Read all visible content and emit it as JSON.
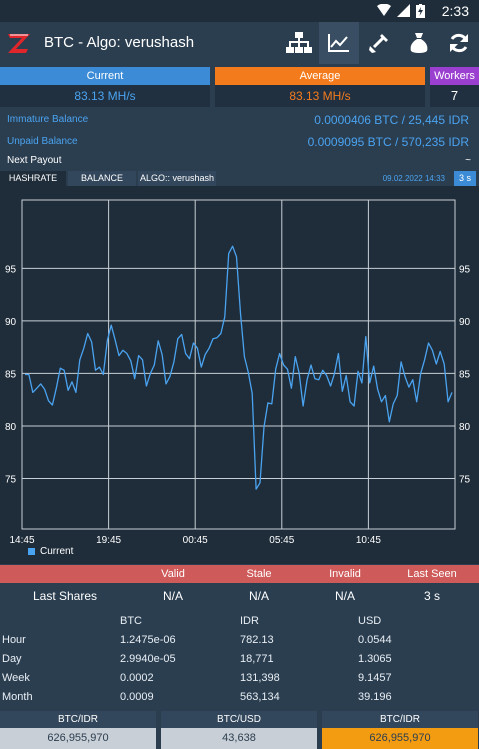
{
  "statusbar": {
    "time": "2:33"
  },
  "appbar": {
    "title": "BTC - Algo: verushash",
    "icons": [
      "network-icon",
      "chart-icon",
      "shovel-icon",
      "money-bag-icon",
      "refresh-icon"
    ]
  },
  "hashrate": {
    "current_label": "Current",
    "current_value": "83.13 MH/s",
    "average_label": "Average",
    "average_value": "83.13 MH/s",
    "workers_label": "Workers",
    "workers_value": "7"
  },
  "balances": {
    "immature_label": "Immature Balance",
    "immature_value": "0.0000406 BTC / 25,445 IDR",
    "unpaid_label": "Unpaid Balance",
    "unpaid_value": "0.0009095 BTC / 570,235 IDR",
    "next_payout_label": "Next Payout",
    "next_payout_value": "~"
  },
  "tabs": {
    "hashrate": "HASHRATE",
    "balance": "BALANCE",
    "algo": "ALGO:: verushash",
    "date": "09.02.2022 14:33",
    "interval": "3 s"
  },
  "chart_data": {
    "type": "line",
    "x_ticks": [
      "14:45",
      "19:45",
      "00:45",
      "05:45",
      "10:45"
    ],
    "y_ticks": [
      75,
      80,
      85,
      90,
      95
    ],
    "ylim": [
      70.2,
      101.5
    ],
    "grid": true,
    "legend_position": "bottom-left",
    "series": [
      {
        "name": "Current",
        "color": "#4aa3f0",
        "values": [
          84.9,
          84.9,
          83.2,
          83.6,
          84.0,
          83.5,
          82.4,
          82.0,
          83.6,
          85.5,
          85.3,
          83.4,
          84.2,
          83.2,
          86.3,
          87.4,
          88.8,
          88.0,
          85.3,
          85.6,
          84.9,
          88.1,
          89.6,
          88.2,
          86.7,
          87.2,
          86.9,
          86.2,
          84.5,
          86.7,
          86.3,
          83.8,
          85.0,
          85.8,
          88.1,
          86.8,
          84.0,
          84.7,
          86.1,
          88.3,
          88.7,
          86.9,
          86.4,
          87.9,
          87.4,
          85.6,
          86.8,
          87.4,
          88.3,
          88.4,
          88.8,
          90.4,
          96.4,
          97.1,
          96.1,
          90.7,
          86.6,
          85.1,
          83.1,
          74.0,
          74.6,
          79.9,
          82.2,
          82.1,
          85.4,
          86.9,
          85.8,
          85.4,
          83.6,
          86.6,
          85.0,
          81.9,
          84.4,
          85.8,
          84.5,
          84.4,
          85.3,
          84.8,
          83.8,
          85.0,
          86.9,
          83.3,
          84.8,
          82.3,
          81.9,
          85.2,
          84.1,
          88.5,
          84.1,
          85.7,
          83.5,
          82.3,
          82.9,
          80.4,
          82.1,
          82.9,
          86.1,
          84.7,
          83.7,
          84.4,
          82.3,
          85.0,
          86.3,
          87.9,
          87.2,
          85.9,
          87.1,
          85.9,
          82.3,
          83.2
        ]
      }
    ]
  },
  "shares": {
    "headers": [
      "Valid",
      "Stale",
      "Invalid",
      "Last Seen"
    ],
    "row_label": "Last Shares",
    "values": [
      "N/A",
      "N/A",
      "N/A",
      "3 s"
    ]
  },
  "earnings": {
    "headers": [
      "BTC",
      "IDR",
      "USD"
    ],
    "rows": [
      {
        "period": "Hour",
        "btc": "1.2475e-06",
        "idr": "782.13",
        "usd": "0.0544"
      },
      {
        "period": "Day",
        "btc": "2.9940e-05",
        "idr": "18,771",
        "usd": "1.3065"
      },
      {
        "period": "Week",
        "btc": "0.0002",
        "idr": "131,398",
        "usd": "9.1457"
      },
      {
        "period": "Month",
        "btc": "0.0009",
        "idr": "563,134",
        "usd": "39.196"
      }
    ]
  },
  "rates": [
    {
      "label": "BTC/IDR",
      "value": "626,955,970"
    },
    {
      "label": "BTC/USD",
      "value": "43,638"
    },
    {
      "label": "BTC/IDR",
      "value": "626,955,970"
    }
  ]
}
